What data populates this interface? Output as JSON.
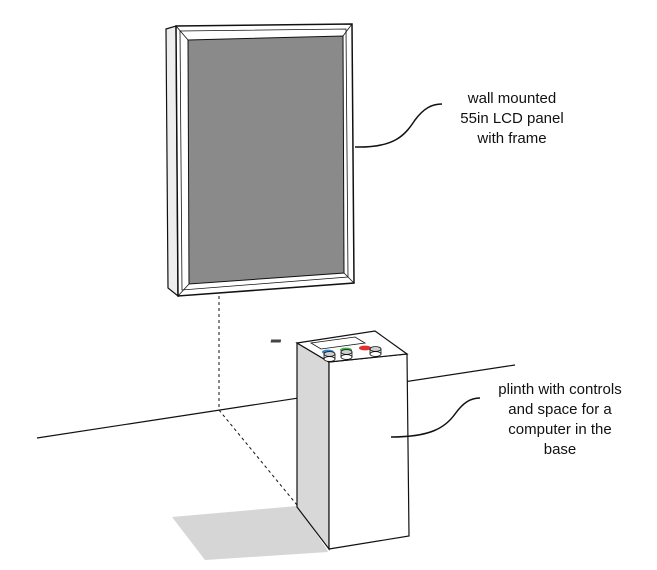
{
  "labels": {
    "lcd_panel": [
      "wall mounted",
      "55in LCD panel",
      "with frame"
    ],
    "plinth": [
      "plinth with controls",
      "and space for a",
      "computer in the",
      "base"
    ]
  },
  "colors": {
    "line": "#111111",
    "screen": "#8a8a8a",
    "frame": "#ffffff",
    "frame_side": "#e6e6e6",
    "plinth_front": "#ffffff",
    "plinth_side": "#d8d8d8",
    "shadow": "#d6d6d6",
    "button_blue": "#2f86d6",
    "button_green": "#3db34a",
    "button_red": "#e0312c"
  }
}
